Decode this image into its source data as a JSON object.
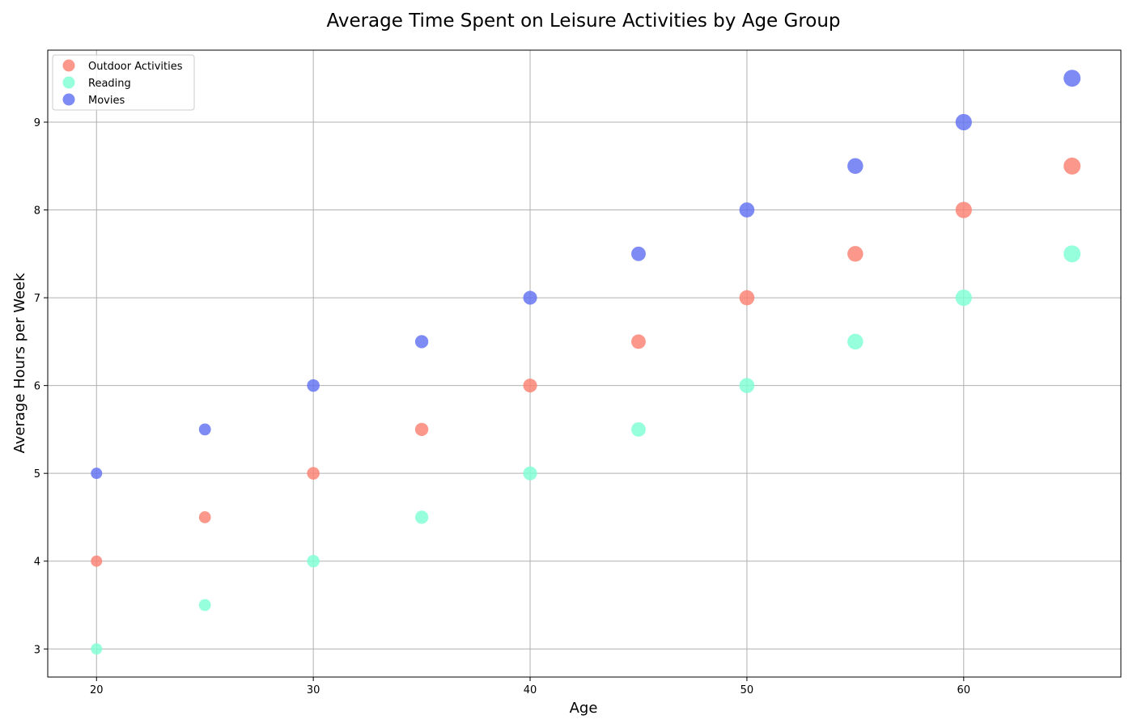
{
  "chart_data": {
    "type": "scatter",
    "title": "Average Time Spent on Leisure Activities by Age Group",
    "xlabel": "Age",
    "ylabel": "Average Hours per Week",
    "xlim": [
      17.75,
      67.25
    ],
    "ylim": [
      2.68,
      9.82
    ],
    "xticks": [
      20,
      30,
      40,
      50,
      60
    ],
    "yticks": [
      3,
      4,
      5,
      6,
      7,
      8,
      9
    ],
    "grid": true,
    "legend_position": "top-left",
    "x": [
      20,
      25,
      30,
      35,
      40,
      45,
      50,
      55,
      60,
      65
    ],
    "series": [
      {
        "name": "Outdoor Activities",
        "color": "#fa8072",
        "values": [
          4.0,
          4.5,
          5.0,
          5.5,
          6.0,
          6.5,
          7.0,
          7.5,
          8.0,
          8.5
        ]
      },
      {
        "name": "Reading",
        "color": "#7fffd4",
        "values": [
          3.0,
          3.5,
          4.0,
          4.5,
          5.0,
          5.5,
          6.0,
          6.5,
          7.0,
          7.5
        ]
      },
      {
        "name": "Movies",
        "color": "#6272f2",
        "values": [
          5.0,
          5.5,
          6.0,
          6.5,
          7.0,
          7.5,
          8.0,
          8.5,
          9.0,
          9.5
        ]
      }
    ]
  }
}
